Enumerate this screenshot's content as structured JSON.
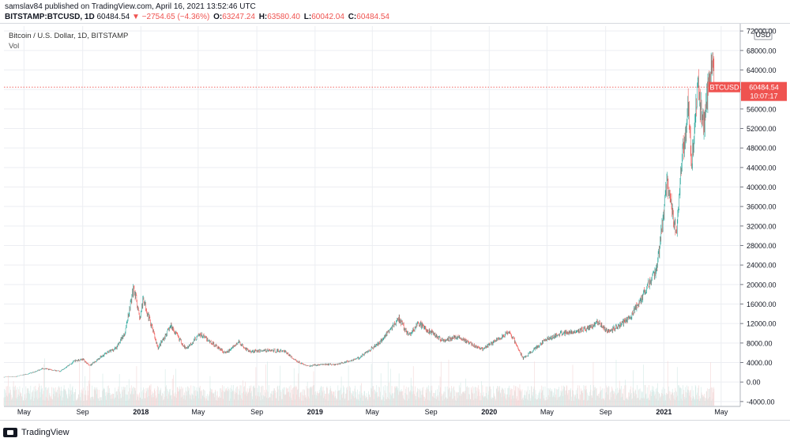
{
  "header": {
    "published": "samslav84 published on TradingView.com, April 16, 2021 13:52:46 UTC",
    "symbol": "BITSTAMP:BTCUSD, 1D",
    "last": "60484.54",
    "arrow": "▼",
    "change": "−2754.65 (−4.36%)",
    "o_label": "O:",
    "o_value": "63247.24",
    "h_label": "H:",
    "h_value": "63580.40",
    "l_label": "L:",
    "l_value": "60042.04",
    "c_label": "C:",
    "c_value": "60484.54"
  },
  "legend": {
    "title": "Bitcoin / U.S. Dollar, 1D, BITSTAMP",
    "vol": "Vol"
  },
  "footer": {
    "brand": "TradingView"
  },
  "colors": {
    "up": "#26a69a",
    "down": "#ef5350",
    "grid": "#eceef2",
    "price_line": "#ef5350",
    "axis_text": "#131722"
  },
  "chart_data": {
    "type": "candlestick",
    "title": "Bitcoin / U.S. Dollar, 1D, BITSTAMP",
    "currency": "USD",
    "ylim": [
      -5000,
      73000
    ],
    "y_ticks": [
      -4000,
      0,
      4000,
      8000,
      12000,
      16000,
      20000,
      24000,
      28000,
      32000,
      36000,
      40000,
      44000,
      48000,
      52000,
      56000,
      60000,
      64000,
      68000,
      72000
    ],
    "y_tick_labels": [
      "-4000.00",
      "0.00",
      "4000.00",
      "8000.00",
      "12000.00",
      "16000.00",
      "20000.00",
      "24000.00",
      "28000.00",
      "32000.00",
      "36000.00",
      "40000.00",
      "44000.00",
      "48000.00",
      "52000.00",
      "56000.00",
      "60000.00",
      "64000.00",
      "68000.00",
      "72000.00"
    ],
    "x_range": [
      "2017-03-20",
      "2021-06-10"
    ],
    "x_ticks": [
      {
        "date": "2017-05-01",
        "label": "May"
      },
      {
        "date": "2017-09-01",
        "label": "Sep"
      },
      {
        "date": "2018-01-01",
        "label": "2018"
      },
      {
        "date": "2018-05-01",
        "label": "May"
      },
      {
        "date": "2018-09-01",
        "label": "Sep"
      },
      {
        "date": "2019-01-01",
        "label": "2019"
      },
      {
        "date": "2019-05-01",
        "label": "May"
      },
      {
        "date": "2019-09-01",
        "label": "Sep"
      },
      {
        "date": "2020-01-01",
        "label": "2020"
      },
      {
        "date": "2020-05-01",
        "label": "May"
      },
      {
        "date": "2020-09-01",
        "label": "Sep"
      },
      {
        "date": "2021-01-01",
        "label": "2021"
      },
      {
        "date": "2021-05-01",
        "label": "May"
      }
    ],
    "price_series": [
      [
        "2017-03-20",
        1000
      ],
      [
        "2017-04-15",
        1150
      ],
      [
        "2017-05-15",
        1800
      ],
      [
        "2017-06-10",
        2800
      ],
      [
        "2017-07-15",
        2200
      ],
      [
        "2017-08-15",
        4300
      ],
      [
        "2017-09-01",
        4700
      ],
      [
        "2017-09-15",
        3300
      ],
      [
        "2017-10-15",
        5600
      ],
      [
        "2017-11-10",
        7000
      ],
      [
        "2017-11-28",
        10000
      ],
      [
        "2017-12-17",
        19500
      ],
      [
        "2017-12-30",
        13000
      ],
      [
        "2018-01-06",
        17000
      ],
      [
        "2018-02-06",
        7000
      ],
      [
        "2018-03-05",
        11500
      ],
      [
        "2018-04-05",
        6800
      ],
      [
        "2018-05-05",
        9800
      ],
      [
        "2018-06-28",
        5900
      ],
      [
        "2018-07-25",
        8200
      ],
      [
        "2018-08-15",
        6300
      ],
      [
        "2018-09-20",
        6500
      ],
      [
        "2018-10-30",
        6300
      ],
      [
        "2018-11-20",
        4500
      ],
      [
        "2018-12-15",
        3300
      ],
      [
        "2019-01-15",
        3600
      ],
      [
        "2019-02-15",
        3600
      ],
      [
        "2019-04-02",
        4900
      ],
      [
        "2019-05-15",
        8000
      ],
      [
        "2019-06-26",
        13000
      ],
      [
        "2019-07-16",
        9500
      ],
      [
        "2019-08-06",
        12000
      ],
      [
        "2019-09-25",
        8500
      ],
      [
        "2019-10-26",
        9300
      ],
      [
        "2019-12-17",
        6700
      ],
      [
        "2020-02-13",
        10300
      ],
      [
        "2020-03-12",
        4800
      ],
      [
        "2020-04-30",
        8800
      ],
      [
        "2020-06-01",
        10000
      ],
      [
        "2020-07-27",
        11000
      ],
      [
        "2020-08-17",
        12300
      ],
      [
        "2020-09-05",
        10200
      ],
      [
        "2020-10-21",
        13000
      ],
      [
        "2020-11-25",
        19000
      ],
      [
        "2020-12-17",
        23000
      ],
      [
        "2021-01-08",
        41000
      ],
      [
        "2021-01-27",
        30500
      ],
      [
        "2021-02-08",
        46000
      ],
      [
        "2021-02-21",
        57000
      ],
      [
        "2021-02-28",
        45000
      ],
      [
        "2021-03-13",
        61000
      ],
      [
        "2021-03-25",
        51500
      ],
      [
        "2021-04-01",
        59000
      ],
      [
        "2021-04-14",
        64500
      ],
      [
        "2021-04-16",
        60484.54
      ]
    ],
    "last_price": 60484.54,
    "price_label": "BTCUSD",
    "price_value": "60484.54",
    "countdown": "10:07:17",
    "volume_label": "Vol"
  }
}
